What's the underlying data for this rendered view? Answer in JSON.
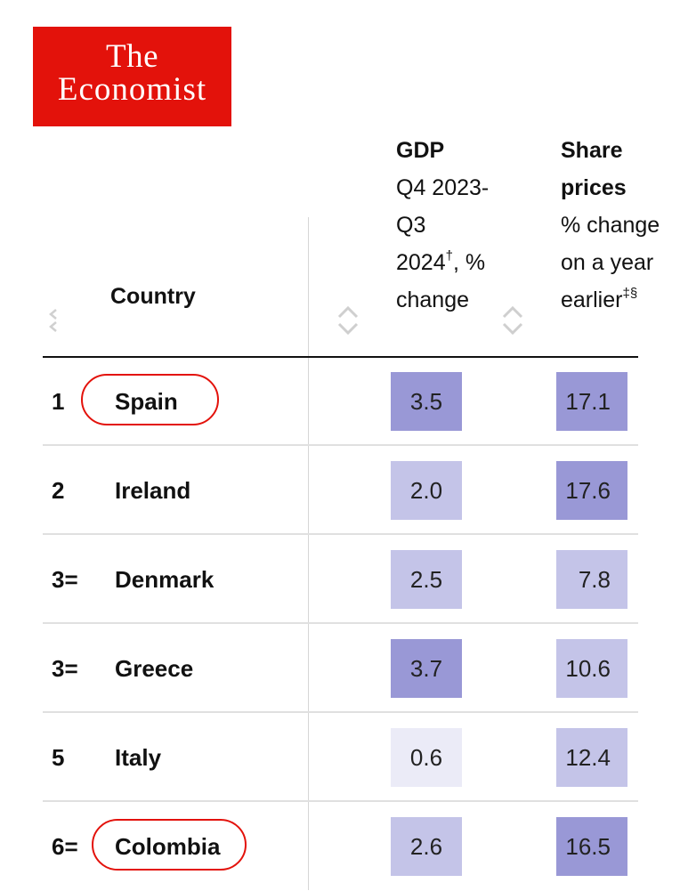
{
  "logo": {
    "line1": "The",
    "line2": "Economist"
  },
  "headers": {
    "country": "Country",
    "gdp": {
      "title": "GDP",
      "line1": "Q4 2023-",
      "line2": "Q3",
      "line3": "2024",
      "line3_sup": "†",
      "line3_rest": ", %",
      "line4": "change"
    },
    "share": {
      "title_line1": "Share",
      "title_line2": "prices",
      "line1": "% change",
      "line2": "on a year",
      "line3": "earlier",
      "line3_sup": "‡§"
    }
  },
  "rows": [
    {
      "rank": "1",
      "country": "Spain",
      "gdp": "3.5",
      "share": "17.1",
      "highlighted": true,
      "gdp_color": "#9998d6",
      "share_color": "#9998d6"
    },
    {
      "rank": "2",
      "country": "Ireland",
      "gdp": "2.0",
      "share": "17.6",
      "highlighted": false,
      "gdp_color": "#c4c4e8",
      "share_color": "#9998d6"
    },
    {
      "rank": "3=",
      "country": "Denmark",
      "gdp": "2.5",
      "share": "7.8",
      "highlighted": false,
      "gdp_color": "#c4c4e8",
      "share_color": "#c4c4e8"
    },
    {
      "rank": "3=",
      "country": "Greece",
      "gdp": "3.7",
      "share": "10.6",
      "highlighted": false,
      "gdp_color": "#9998d6",
      "share_color": "#c4c4e8"
    },
    {
      "rank": "5",
      "country": "Italy",
      "gdp": "0.6",
      "share": "12.4",
      "highlighted": false,
      "gdp_color": "#ebebf7",
      "share_color": "#c4c4e8"
    },
    {
      "rank": "6=",
      "country": "Colombia",
      "gdp": "2.6",
      "share": "16.5",
      "highlighted": true,
      "gdp_color": "#c4c4e8",
      "share_color": "#9998d6"
    }
  ]
}
